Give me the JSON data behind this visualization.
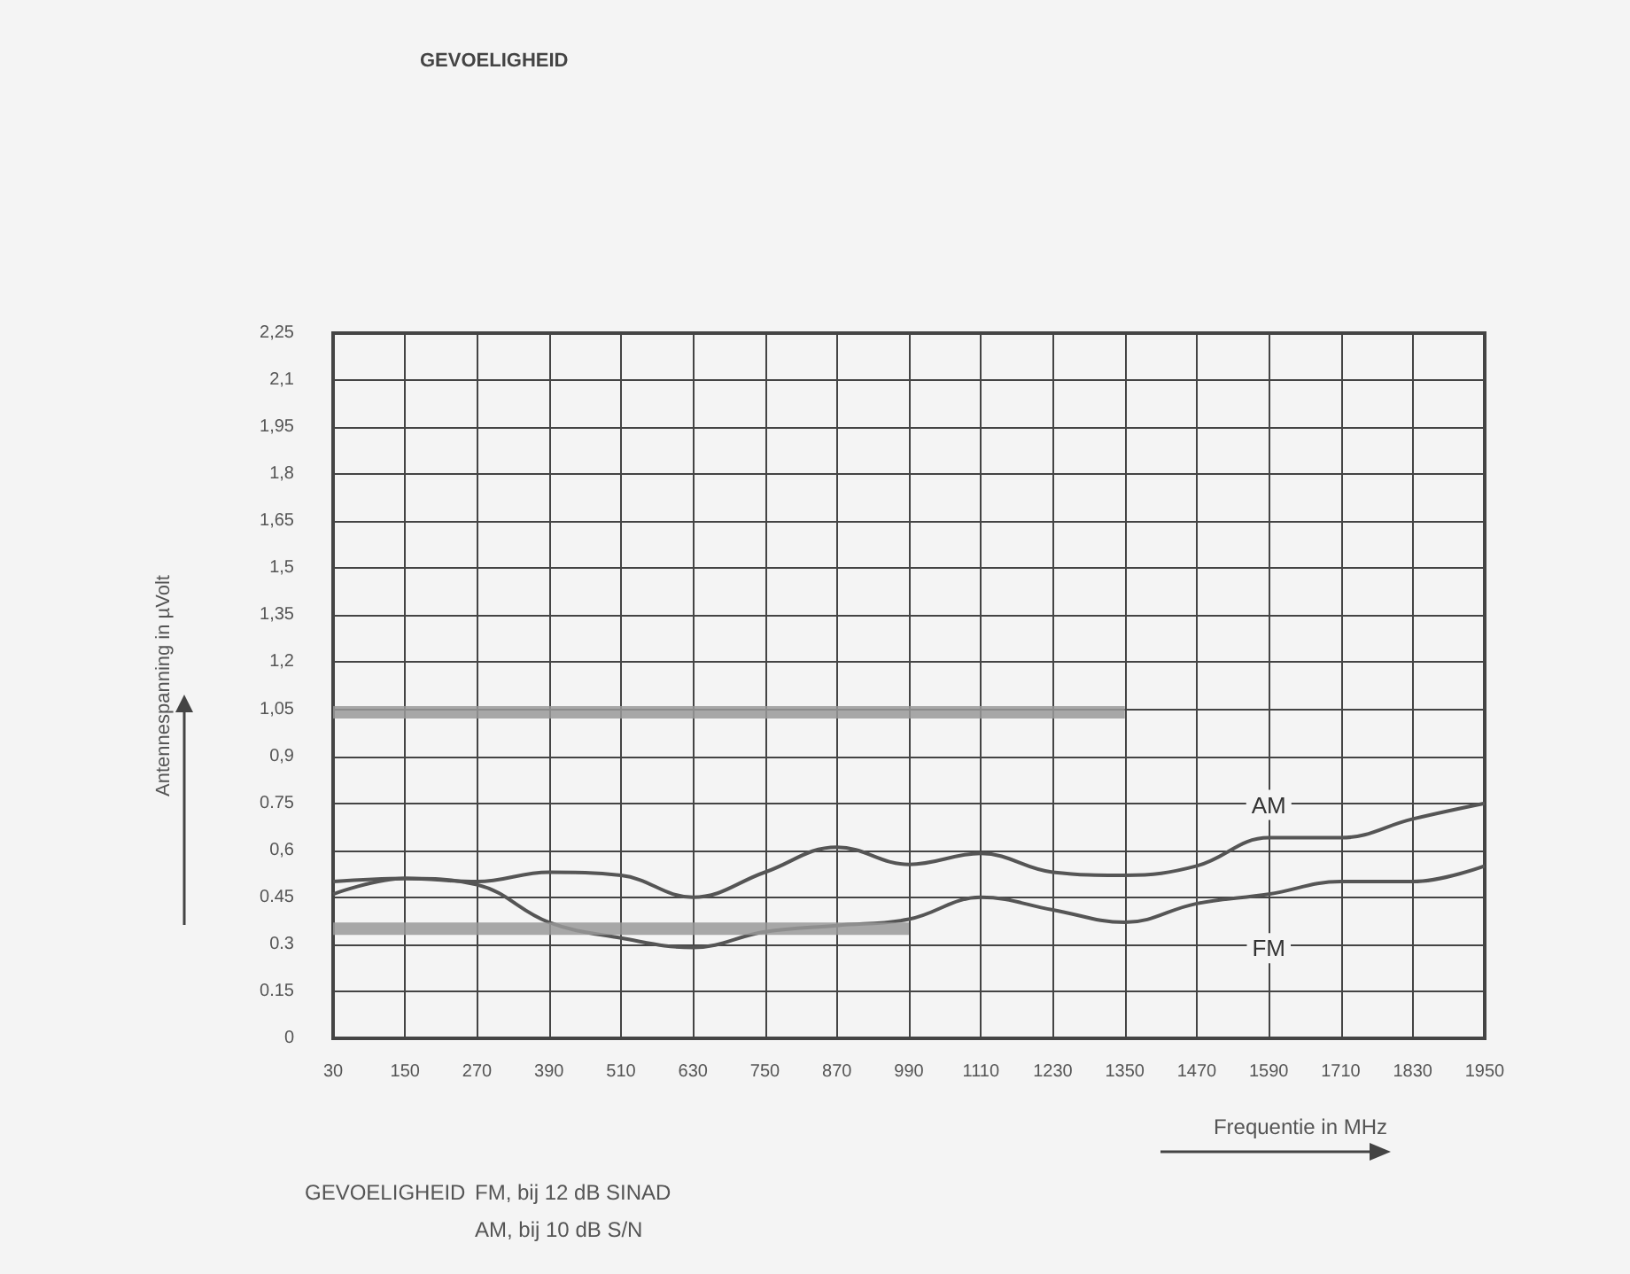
{
  "chart_data": {
    "type": "line",
    "title": "GEVOELIGHEID",
    "xlabel": "Frequentie in MHz",
    "ylabel": "Antennespanning in µVolt",
    "x": [
      30,
      150,
      270,
      390,
      510,
      630,
      750,
      870,
      990,
      1110,
      1230,
      1350,
      1470,
      1590,
      1710,
      1830,
      1950
    ],
    "series": [
      {
        "name": "AM",
        "color": "#555555",
        "values": [
          0.5,
          0.51,
          0.5,
          0.53,
          0.52,
          0.45,
          0.53,
          0.61,
          0.555,
          0.59,
          0.53,
          0.52,
          0.55,
          0.64,
          0.64,
          0.7,
          0.75
        ]
      },
      {
        "name": "FM",
        "color": "#555555",
        "values": [
          0.46,
          0.51,
          0.49,
          0.37,
          0.32,
          0.29,
          0.34,
          0.36,
          0.38,
          0.45,
          0.41,
          0.37,
          0.43,
          0.46,
          0.5,
          0.5,
          0.55
        ]
      },
      {
        "color": "#999999",
        "x": [
          30,
          1350
        ],
        "values": [
          1.04,
          1.04
        ]
      },
      {
        "color": "#999999",
        "x": [
          30,
          990
        ],
        "values": [
          0.35,
          0.35
        ]
      }
    ],
    "xlim": [
      30,
      1950
    ],
    "xticks": [
      30,
      150,
      270,
      390,
      510,
      630,
      750,
      870,
      990,
      1110,
      1230,
      1350,
      1470,
      1590,
      1710,
      1830,
      1950
    ],
    "ylim": [
      0,
      2.25
    ],
    "yticks": [
      0,
      {
        "value": 0.15,
        "label": "0.15"
      },
      {
        "value": 0.3,
        "label": "0.3"
      },
      {
        "value": 0.45,
        "label": "0.45"
      },
      {
        "value": 0.6,
        "label": "0,6"
      },
      {
        "value": 0.75,
        "label": "0.75"
      },
      {
        "value": 0.9,
        "label": "0,9"
      },
      {
        "value": 1.05,
        "label": "1,05"
      },
      {
        "value": 1.2,
        "label": "1,2"
      },
      {
        "value": 1.35,
        "label": "1,35"
      },
      {
        "value": 1.5,
        "label": "1,5"
      },
      {
        "value": 1.65,
        "label": "1,65"
      },
      {
        "value": 1.8,
        "label": "1,8"
      },
      {
        "value": 1.95,
        "label": "1,95"
      },
      {
        "value": 2.1,
        "label": "2,1"
      },
      {
        "value": 2.25,
        "label": "2,25"
      }
    ],
    "grid": true,
    "legend": false,
    "marker": "none",
    "line_style": "solid",
    "annotations": [
      "GEVOELIGHEID",
      "FM, bij 12 dB SINAD",
      "AM, bij 10 dB S/N"
    ]
  }
}
